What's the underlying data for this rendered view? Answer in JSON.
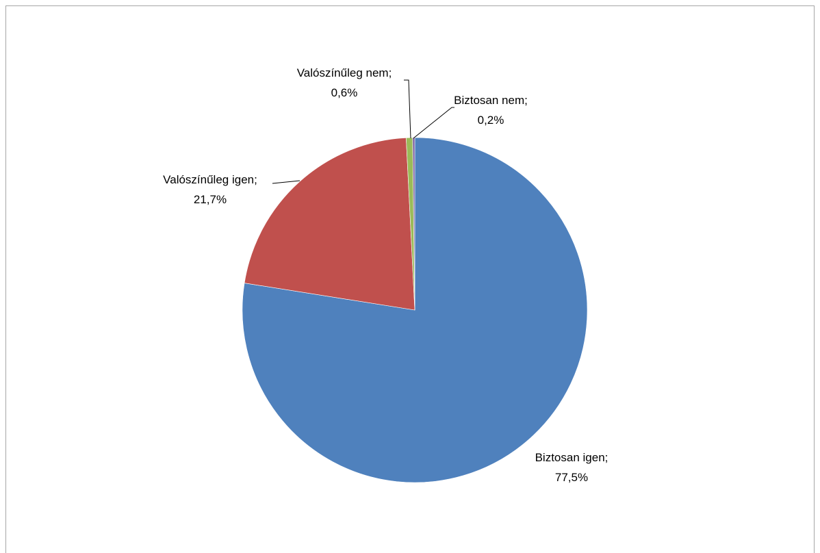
{
  "chart_data": {
    "type": "pie",
    "title": "",
    "slices": [
      {
        "label": "Biztosan igen",
        "value": 77.5,
        "value_text": "77,5%",
        "color": "#4F81BD"
      },
      {
        "label": "Valószínűleg igen",
        "value": 21.7,
        "value_text": "21,7%",
        "color": "#C0504D"
      },
      {
        "label": "Valószínűleg nem",
        "value": 0.6,
        "value_text": "0,6%",
        "color": "#9BBB59"
      },
      {
        "label": "Biztosan nem",
        "value": 0.2,
        "value_text": "0,2%",
        "color": "#8064A2"
      }
    ],
    "legend": "none",
    "start_angle": "12 o'clock",
    "direction": "clockwise"
  }
}
